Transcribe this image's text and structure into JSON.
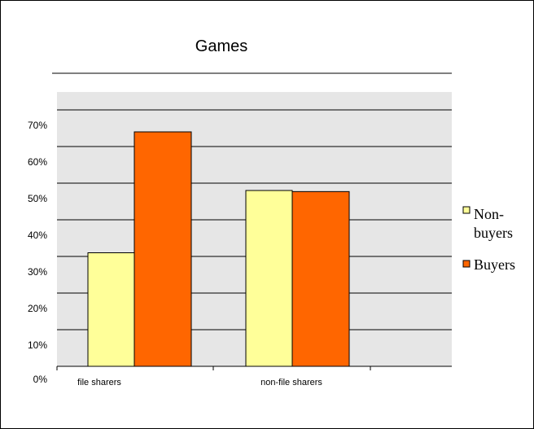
{
  "chart_data": {
    "type": "bar",
    "title": "Games",
    "categories": [
      "file sharers",
      "non-file sharers"
    ],
    "series": [
      {
        "name": "Non-buyers",
        "values": [
          0.31,
          0.48
        ],
        "color": "#FFFF99"
      },
      {
        "name": "Buyers",
        "values": [
          0.64,
          0.477
        ],
        "color": "#FF6600"
      }
    ],
    "y_ticks": [
      "0%",
      "10%",
      "20%",
      "30%",
      "40%",
      "50%",
      "60%",
      "70%"
    ],
    "ylim": [
      -0.05,
      0.8
    ],
    "grid": true,
    "legend_position": "right",
    "plot_background": "#E6E6E6"
  }
}
